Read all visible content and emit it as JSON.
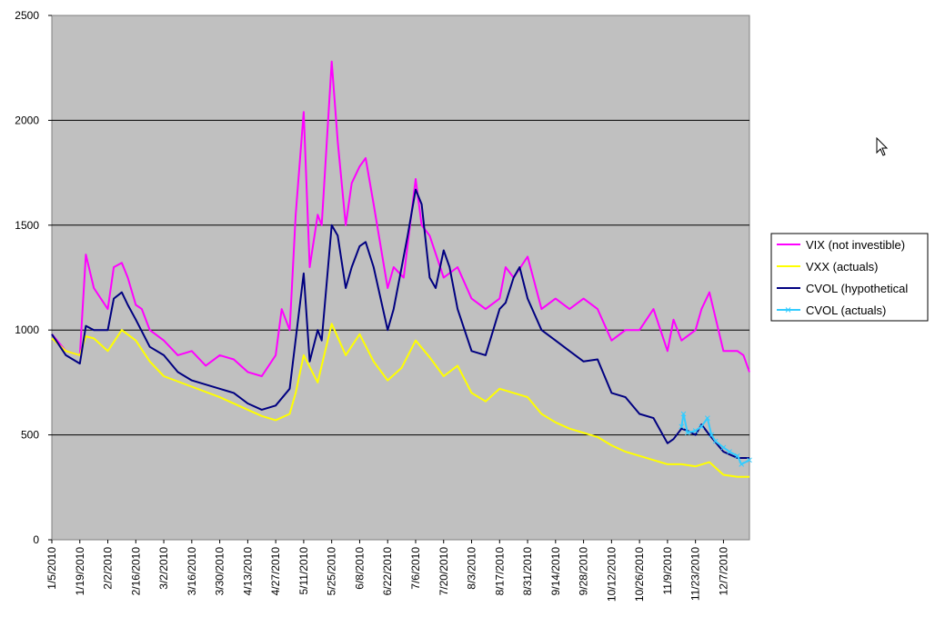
{
  "chart_data": {
    "type": "line",
    "title": "",
    "xlabel": "",
    "ylabel": "",
    "ylim": [
      0,
      2500
    ],
    "yticks": [
      0,
      500,
      1000,
      1500,
      2000,
      2500
    ],
    "grid": true,
    "legend_position": "right",
    "background_color": "#c0c0c0",
    "xticks": [
      "1/5/2010",
      "1/19/2010",
      "2/2/2010",
      "2/16/2010",
      "3/2/2010",
      "3/16/2010",
      "3/30/2010",
      "4/13/2010",
      "4/27/2010",
      "5/11/2010",
      "5/25/2010",
      "6/8/2010",
      "6/22/2010",
      "7/6/2010",
      "7/20/2010",
      "8/3/2010",
      "8/17/2010",
      "8/31/2010",
      "9/14/2010",
      "9/28/2010",
      "10/12/2010",
      "10/26/2010",
      "11/9/2010",
      "11/23/2010",
      "12/7/2010"
    ],
    "series": [
      {
        "name": "VIX (not investible)",
        "color": "#ff00ff",
        "x": [
          "1/5/2010",
          "1/12/2010",
          "1/19/2010",
          "1/22/2010",
          "1/26/2010",
          "2/2/2010",
          "2/5/2010",
          "2/9/2010",
          "2/12/2010",
          "2/16/2010",
          "2/19/2010",
          "2/23/2010",
          "3/2/2010",
          "3/9/2010",
          "3/16/2010",
          "3/23/2010",
          "3/30/2010",
          "4/6/2010",
          "4/13/2010",
          "4/20/2010",
          "4/27/2010",
          "4/30/2010",
          "5/4/2010",
          "5/7/2010",
          "5/11/2010",
          "5/14/2010",
          "5/18/2010",
          "5/20/2010",
          "5/25/2010",
          "5/28/2010",
          "6/1/2010",
          "6/4/2010",
          "6/8/2010",
          "6/11/2010",
          "6/15/2010",
          "6/22/2010",
          "6/25/2010",
          "6/30/2010",
          "7/6/2010",
          "7/9/2010",
          "7/13/2010",
          "7/20/2010",
          "7/27/2010",
          "8/3/2010",
          "8/10/2010",
          "8/17/2010",
          "8/20/2010",
          "8/24/2010",
          "8/31/2010",
          "9/7/2010",
          "9/14/2010",
          "9/21/2010",
          "9/28/2010",
          "10/5/2010",
          "10/12/2010",
          "10/19/2010",
          "10/26/2010",
          "11/2/2010",
          "11/9/2010",
          "11/12/2010",
          "11/16/2010",
          "11/23/2010",
          "11/26/2010",
          "11/30/2010",
          "12/7/2010",
          "12/14/2010",
          "12/17/2010",
          "12/20/2010"
        ],
        "y": [
          980,
          900,
          880,
          1360,
          1200,
          1100,
          1300,
          1320,
          1250,
          1120,
          1100,
          1000,
          950,
          880,
          900,
          830,
          880,
          860,
          800,
          780,
          880,
          1100,
          1000,
          1550,
          2040,
          1300,
          1550,
          1500,
          2280,
          1900,
          1500,
          1700,
          1780,
          1820,
          1600,
          1200,
          1300,
          1250,
          1720,
          1500,
          1450,
          1250,
          1300,
          1150,
          1100,
          1150,
          1300,
          1250,
          1350,
          1100,
          1150,
          1100,
          1150,
          1100,
          950,
          1000,
          1000,
          1100,
          900,
          1050,
          950,
          1000,
          1100,
          1180,
          900,
          900,
          880,
          800
        ]
      },
      {
        "name": "VXX (actuals)",
        "color": "#ffff00",
        "x": [
          "1/5/2010",
          "1/12/2010",
          "1/19/2010",
          "1/22/2010",
          "1/26/2010",
          "2/2/2010",
          "2/9/2010",
          "2/16/2010",
          "2/23/2010",
          "3/2/2010",
          "3/16/2010",
          "3/30/2010",
          "4/13/2010",
          "4/20/2010",
          "4/27/2010",
          "5/4/2010",
          "5/7/2010",
          "5/11/2010",
          "5/18/2010",
          "5/25/2010",
          "6/1/2010",
          "6/8/2010",
          "6/15/2010",
          "6/22/2010",
          "6/29/2010",
          "7/6/2010",
          "7/13/2010",
          "7/20/2010",
          "7/27/2010",
          "8/3/2010",
          "8/10/2010",
          "8/17/2010",
          "8/24/2010",
          "8/31/2010",
          "9/7/2010",
          "9/14/2010",
          "9/21/2010",
          "9/28/2010",
          "10/5/2010",
          "10/12/2010",
          "10/19/2010",
          "10/26/2010",
          "11/2/2010",
          "11/9/2010",
          "11/16/2010",
          "11/23/2010",
          "11/30/2010",
          "12/7/2010",
          "12/14/2010",
          "12/20/2010"
        ],
        "y": [
          960,
          900,
          880,
          970,
          960,
          900,
          1000,
          950,
          850,
          780,
          730,
          680,
          620,
          590,
          570,
          600,
          700,
          880,
          750,
          1030,
          880,
          980,
          850,
          760,
          820,
          950,
          870,
          780,
          830,
          700,
          660,
          720,
          700,
          680,
          600,
          560,
          530,
          510,
          490,
          450,
          420,
          400,
          380,
          360,
          360,
          350,
          370,
          310,
          300,
          300
        ]
      },
      {
        "name": "CVOL (hypothetical",
        "color": "#000080",
        "x": [
          "1/5/2010",
          "1/12/2010",
          "1/19/2010",
          "1/22/2010",
          "1/26/2010",
          "2/2/2010",
          "2/5/2010",
          "2/9/2010",
          "2/12/2010",
          "2/16/2010",
          "2/23/2010",
          "3/2/2010",
          "3/9/2010",
          "3/16/2010",
          "3/23/2010",
          "3/30/2010",
          "4/6/2010",
          "4/13/2010",
          "4/20/2010",
          "4/27/2010",
          "5/4/2010",
          "5/11/2010",
          "5/14/2010",
          "5/18/2010",
          "5/20/2010",
          "5/25/2010",
          "5/28/2010",
          "6/1/2010",
          "6/4/2010",
          "6/8/2010",
          "6/11/2010",
          "6/15/2010",
          "6/22/2010",
          "6/25/2010",
          "6/29/2010",
          "7/2/2010",
          "7/6/2010",
          "7/9/2010",
          "7/13/2010",
          "7/16/2010",
          "7/20/2010",
          "7/23/2010",
          "7/27/2010",
          "8/3/2010",
          "8/10/2010",
          "8/17/2010",
          "8/20/2010",
          "8/24/2010",
          "8/27/2010",
          "8/31/2010",
          "9/7/2010",
          "9/14/2010",
          "9/21/2010",
          "9/28/2010",
          "10/5/2010",
          "10/12/2010",
          "10/19/2010",
          "10/26/2010",
          "11/2/2010",
          "11/9/2010",
          "11/12/2010",
          "11/16/2010",
          "11/19/2010",
          "11/23/2010",
          "11/26/2010",
          "11/30/2010",
          "12/7/2010",
          "12/14/2010",
          "12/20/2010"
        ],
        "y": [
          980,
          880,
          840,
          1020,
          1000,
          1000,
          1150,
          1180,
          1120,
          1050,
          920,
          880,
          800,
          760,
          740,
          720,
          700,
          650,
          620,
          640,
          720,
          1270,
          850,
          1000,
          950,
          1500,
          1450,
          1200,
          1300,
          1400,
          1420,
          1300,
          1000,
          1100,
          1300,
          1450,
          1670,
          1600,
          1250,
          1200,
          1380,
          1300,
          1100,
          900,
          880,
          1100,
          1130,
          1250,
          1300,
          1150,
          1000,
          950,
          900,
          850,
          860,
          700,
          680,
          600,
          580,
          460,
          480,
          530,
          520,
          500,
          550,
          500,
          420,
          390,
          390
        ]
      },
      {
        "name": "CVOL (actuals)",
        "color": "#33ccff",
        "x": [
          "11/16/2010",
          "11/17/2010",
          "11/19/2010",
          "11/23/2010",
          "11/26/2010",
          "11/29/2010",
          "12/1/2010",
          "12/3/2010",
          "12/7/2010",
          "12/10/2010",
          "12/14/2010",
          "12/16/2010",
          "12/20/2010"
        ],
        "y": [
          540,
          600,
          510,
          520,
          540,
          580,
          500,
          470,
          440,
          420,
          400,
          360,
          380
        ]
      }
    ]
  }
}
